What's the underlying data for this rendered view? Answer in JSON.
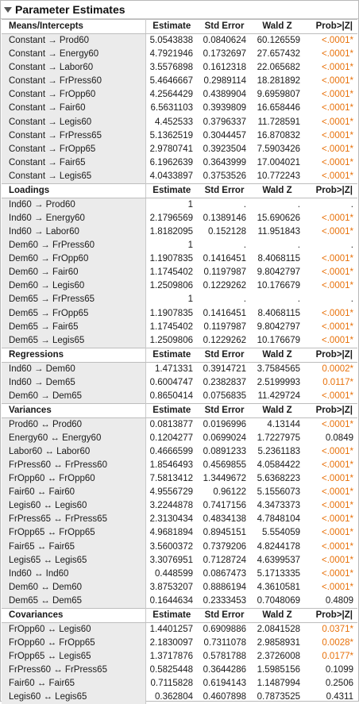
{
  "report": {
    "title": "Parameter Estimates"
  },
  "columns": [
    "Estimate",
    "Std Error",
    "Wald Z",
    "Prob>|Z|"
  ],
  "sections": [
    {
      "name": "Means/Intercepts",
      "rows": [
        {
          "term": "Constant → Prod60",
          "estimate": "5.0543838",
          "std_error": "0.0840624",
          "wald_z": "60.126559",
          "prob": "<.0001*",
          "significant": true
        },
        {
          "term": "Constant → Energy60",
          "estimate": "4.7921946",
          "std_error": "0.1732697",
          "wald_z": "27.657432",
          "prob": "<.0001*",
          "significant": true
        },
        {
          "term": "Constant → Labor60",
          "estimate": "3.5576898",
          "std_error": "0.1612318",
          "wald_z": "22.065682",
          "prob": "<.0001*",
          "significant": true
        },
        {
          "term": "Constant → FrPress60",
          "estimate": "5.4646667",
          "std_error": "0.2989114",
          "wald_z": "18.281892",
          "prob": "<.0001*",
          "significant": true
        },
        {
          "term": "Constant → FrOpp60",
          "estimate": "4.2564429",
          "std_error": "0.4389904",
          "wald_z": "9.6959807",
          "prob": "<.0001*",
          "significant": true
        },
        {
          "term": "Constant → Fair60",
          "estimate": "6.5631103",
          "std_error": "0.3939809",
          "wald_z": "16.658446",
          "prob": "<.0001*",
          "significant": true
        },
        {
          "term": "Constant → Legis60",
          "estimate": "4.452533",
          "std_error": "0.3796337",
          "wald_z": "11.728591",
          "prob": "<.0001*",
          "significant": true
        },
        {
          "term": "Constant → FrPress65",
          "estimate": "5.1362519",
          "std_error": "0.3044457",
          "wald_z": "16.870832",
          "prob": "<.0001*",
          "significant": true
        },
        {
          "term": "Constant → FrOpp65",
          "estimate": "2.9780741",
          "std_error": "0.3923504",
          "wald_z": "7.5903426",
          "prob": "<.0001*",
          "significant": true
        },
        {
          "term": "Constant → Fair65",
          "estimate": "6.1962639",
          "std_error": "0.3643999",
          "wald_z": "17.004021",
          "prob": "<.0001*",
          "significant": true
        },
        {
          "term": "Constant → Legis65",
          "estimate": "4.0433897",
          "std_error": "0.3753526",
          "wald_z": "10.772243",
          "prob": "<.0001*",
          "significant": true
        }
      ]
    },
    {
      "name": "Loadings",
      "rows": [
        {
          "term": "Ind60 → Prod60",
          "estimate": "1",
          "std_error": ".",
          "wald_z": ".",
          "prob": ".",
          "significant": false
        },
        {
          "term": "Ind60 → Energy60",
          "estimate": "2.1796569",
          "std_error": "0.1389146",
          "wald_z": "15.690626",
          "prob": "<.0001*",
          "significant": true
        },
        {
          "term": "Ind60 → Labor60",
          "estimate": "1.8182095",
          "std_error": "0.152128",
          "wald_z": "11.951843",
          "prob": "<.0001*",
          "significant": true
        },
        {
          "term": "Dem60 → FrPress60",
          "estimate": "1",
          "std_error": ".",
          "wald_z": ".",
          "prob": ".",
          "significant": false
        },
        {
          "term": "Dem60 → FrOpp60",
          "estimate": "1.1907835",
          "std_error": "0.1416451",
          "wald_z": "8.4068115",
          "prob": "<.0001*",
          "significant": true
        },
        {
          "term": "Dem60 → Fair60",
          "estimate": "1.1745402",
          "std_error": "0.1197987",
          "wald_z": "9.8042797",
          "prob": "<.0001*",
          "significant": true
        },
        {
          "term": "Dem60 → Legis60",
          "estimate": "1.2509806",
          "std_error": "0.1229262",
          "wald_z": "10.176679",
          "prob": "<.0001*",
          "significant": true
        },
        {
          "term": "Dem65 → FrPress65",
          "estimate": "1",
          "std_error": ".",
          "wald_z": ".",
          "prob": ".",
          "significant": false
        },
        {
          "term": "Dem65 → FrOpp65",
          "estimate": "1.1907835",
          "std_error": "0.1416451",
          "wald_z": "8.4068115",
          "prob": "<.0001*",
          "significant": true
        },
        {
          "term": "Dem65 → Fair65",
          "estimate": "1.1745402",
          "std_error": "0.1197987",
          "wald_z": "9.8042797",
          "prob": "<.0001*",
          "significant": true
        },
        {
          "term": "Dem65 → Legis65",
          "estimate": "1.2509806",
          "std_error": "0.1229262",
          "wald_z": "10.176679",
          "prob": "<.0001*",
          "significant": true
        }
      ]
    },
    {
      "name": "Regressions",
      "rows": [
        {
          "term": "Ind60 → Dem60",
          "estimate": "1.471331",
          "std_error": "0.3914721",
          "wald_z": "3.7584565",
          "prob": "0.0002*",
          "significant": true
        },
        {
          "term": "Ind60 → Dem65",
          "estimate": "0.6004747",
          "std_error": "0.2382837",
          "wald_z": "2.5199993",
          "prob": "0.0117*",
          "significant": true
        },
        {
          "term": "Dem60 → Dem65",
          "estimate": "0.8650414",
          "std_error": "0.0756835",
          "wald_z": "11.429724",
          "prob": "<.0001*",
          "significant": true
        }
      ]
    },
    {
      "name": "Variances",
      "rows": [
        {
          "term": "Prod60 ↔ Prod60",
          "estimate": "0.0813877",
          "std_error": "0.0196996",
          "wald_z": "4.13144",
          "prob": "<.0001*",
          "significant": true
        },
        {
          "term": "Energy60 ↔ Energy60",
          "estimate": "0.1204277",
          "std_error": "0.0699024",
          "wald_z": "1.7227975",
          "prob": "0.0849",
          "significant": false
        },
        {
          "term": "Labor60 ↔ Labor60",
          "estimate": "0.4666599",
          "std_error": "0.0891233",
          "wald_z": "5.2361183",
          "prob": "<.0001*",
          "significant": true
        },
        {
          "term": "FrPress60 ↔ FrPress60",
          "estimate": "1.8546493",
          "std_error": "0.4569855",
          "wald_z": "4.0584422",
          "prob": "<.0001*",
          "significant": true
        },
        {
          "term": "FrOpp60 ↔ FrOpp60",
          "estimate": "7.5813412",
          "std_error": "1.3449672",
          "wald_z": "5.6368223",
          "prob": "<.0001*",
          "significant": true
        },
        {
          "term": "Fair60 ↔ Fair60",
          "estimate": "4.9556729",
          "std_error": "0.96122",
          "wald_z": "5.1556073",
          "prob": "<.0001*",
          "significant": true
        },
        {
          "term": "Legis60 ↔ Legis60",
          "estimate": "3.2244878",
          "std_error": "0.7417156",
          "wald_z": "4.3473373",
          "prob": "<.0001*",
          "significant": true
        },
        {
          "term": "FrPress65 ↔ FrPress65",
          "estimate": "2.3130434",
          "std_error": "0.4834138",
          "wald_z": "4.7848104",
          "prob": "<.0001*",
          "significant": true
        },
        {
          "term": "FrOpp65 ↔ FrOpp65",
          "estimate": "4.9681894",
          "std_error": "0.8945151",
          "wald_z": "5.554059",
          "prob": "<.0001*",
          "significant": true
        },
        {
          "term": "Fair65 ↔ Fair65",
          "estimate": "3.5600372",
          "std_error": "0.7379206",
          "wald_z": "4.8244178",
          "prob": "<.0001*",
          "significant": true
        },
        {
          "term": "Legis65 ↔ Legis65",
          "estimate": "3.3076951",
          "std_error": "0.7128724",
          "wald_z": "4.6399537",
          "prob": "<.0001*",
          "significant": true
        },
        {
          "term": "Ind60 ↔ Ind60",
          "estimate": "0.448599",
          "std_error": "0.0867473",
          "wald_z": "5.1713335",
          "prob": "<.0001*",
          "significant": true
        },
        {
          "term": "Dem60 ↔ Dem60",
          "estimate": "3.8753207",
          "std_error": "0.8886194",
          "wald_z": "4.3610581",
          "prob": "<.0001*",
          "significant": true
        },
        {
          "term": "Dem65 ↔ Dem65",
          "estimate": "0.1644634",
          "std_error": "0.2333453",
          "wald_z": "0.7048069",
          "prob": "0.4809",
          "significant": false
        }
      ]
    },
    {
      "name": "Covariances",
      "rows": [
        {
          "term": "FrOpp60 ↔ Legis60",
          "estimate": "1.4401257",
          "std_error": "0.6909886",
          "wald_z": "2.0841528",
          "prob": "0.0371*",
          "significant": true
        },
        {
          "term": "FrOpp60 ↔ FrOpp65",
          "estimate": "2.1830097",
          "std_error": "0.7311078",
          "wald_z": "2.9858931",
          "prob": "0.0028*",
          "significant": true
        },
        {
          "term": "FrOpp65 ↔ Legis65",
          "estimate": "1.3717876",
          "std_error": "0.5781788",
          "wald_z": "2.3726008",
          "prob": "0.0177*",
          "significant": true
        },
        {
          "term": "FrPress60 ↔ FrPress65",
          "estimate": "0.5825448",
          "std_error": "0.3644286",
          "wald_z": "1.5985156",
          "prob": "0.1099",
          "significant": false
        },
        {
          "term": "Fair60 ↔ Fair65",
          "estimate": "0.7115828",
          "std_error": "0.6194143",
          "wald_z": "1.1487994",
          "prob": "0.2506",
          "significant": false
        },
        {
          "term": "Legis60 ↔ Legis65",
          "estimate": "0.362804",
          "std_error": "0.4607898",
          "wald_z": "0.7873525",
          "prob": "0.4311",
          "significant": false
        }
      ]
    }
  ],
  "colors": {
    "significant": "#e8710a",
    "term_bg": "#ebebeb",
    "text": "#1a1a1a"
  },
  "icons": {
    "disclosure": "triangle-down-icon"
  }
}
